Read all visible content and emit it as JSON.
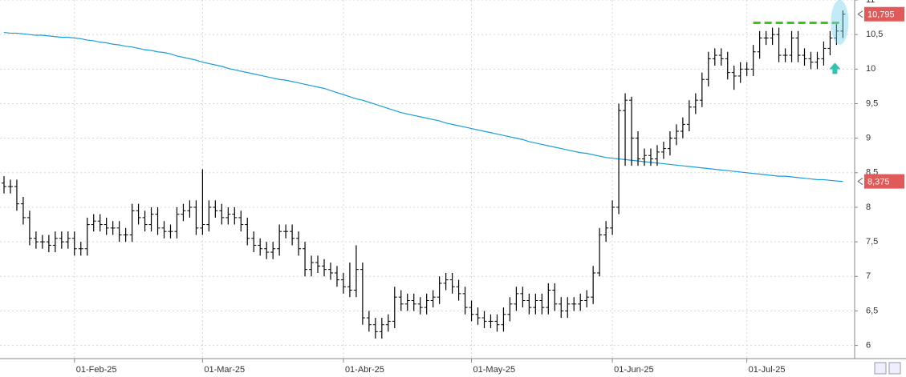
{
  "chart_data": {
    "type": "ohlc",
    "categories": [
      null,
      null,
      null,
      null,
      null,
      null,
      null,
      null,
      null,
      null,
      null,
      "01-Feb-25",
      null,
      null,
      null,
      null,
      null,
      null,
      null,
      null,
      null,
      null,
      null,
      null,
      null,
      null,
      null,
      null,
      null,
      null,
      null,
      "01-Mar-25",
      null,
      null,
      null,
      null,
      null,
      null,
      null,
      null,
      null,
      null,
      null,
      null,
      null,
      null,
      null,
      null,
      null,
      null,
      null,
      null,
      null,
      "01-Abr-25",
      null,
      null,
      null,
      null,
      null,
      null,
      null,
      null,
      null,
      null,
      null,
      null,
      null,
      null,
      null,
      null,
      null,
      null,
      null,
      "01-May-25",
      null,
      null,
      null,
      null,
      null,
      null,
      null,
      null,
      null,
      null,
      null,
      null,
      null,
      null,
      null,
      null,
      null,
      null,
      null,
      null,
      null,
      "01-Jun-25",
      null,
      null,
      null,
      null,
      null,
      null,
      null,
      null,
      null,
      null,
      null,
      null,
      null,
      null,
      null,
      null,
      null,
      null,
      null,
      null,
      "01-Jul-25",
      null,
      null,
      null,
      null,
      null,
      null,
      null,
      null,
      null,
      null,
      null,
      null,
      null,
      null,
      null
    ],
    "open": [
      8.35,
      8.3,
      8.3,
      8.05,
      7.85,
      7.55,
      7.5,
      7.5,
      7.45,
      7.55,
      7.5,
      7.55,
      7.4,
      7.4,
      7.75,
      7.8,
      7.75,
      7.7,
      7.7,
      7.6,
      7.6,
      7.95,
      7.85,
      7.75,
      7.9,
      7.7,
      7.65,
      7.65,
      7.9,
      7.95,
      8.0,
      7.7,
      7.75,
      8.0,
      7.95,
      7.85,
      7.9,
      7.85,
      7.75,
      7.55,
      7.45,
      7.4,
      7.35,
      7.4,
      7.65,
      7.65,
      7.55,
      7.4,
      7.1,
      7.2,
      7.15,
      7.1,
      7.05,
      6.95,
      6.85,
      6.8,
      7.1,
      6.4,
      6.3,
      6.2,
      6.3,
      6.35,
      6.7,
      6.6,
      6.65,
      6.6,
      6.55,
      6.65,
      6.7,
      6.9,
      6.95,
      6.85,
      6.75,
      6.55,
      6.45,
      6.4,
      6.35,
      6.35,
      6.3,
      6.45,
      6.6,
      6.75,
      6.65,
      6.55,
      6.65,
      6.55,
      6.8,
      6.6,
      6.5,
      6.6,
      6.6,
      6.65,
      6.7,
      7.05,
      7.6,
      7.7,
      8.0,
      9.4,
      9.55,
      9.0,
      8.7,
      8.75,
      8.7,
      8.8,
      8.85,
      9.0,
      9.1,
      9.2,
      9.45,
      9.55,
      9.85,
      10.15,
      10.2,
      10.15,
      9.95,
      9.9,
      10.0,
      10.0,
      10.25,
      10.45,
      10.45,
      10.5,
      10.2,
      10.2,
      10.45,
      10.2,
      10.15,
      10.1,
      10.15,
      10.3,
      10.45,
      10.55
    ],
    "high": [
      8.45,
      8.4,
      8.4,
      8.15,
      7.95,
      7.65,
      7.6,
      7.6,
      7.65,
      7.65,
      7.65,
      7.65,
      7.5,
      7.85,
      7.9,
      7.9,
      7.85,
      7.8,
      7.8,
      7.7,
      8.05,
      8.05,
      7.95,
      8.0,
      8.0,
      7.8,
      7.75,
      8.0,
      8.05,
      8.1,
      8.1,
      8.55,
      8.1,
      8.1,
      8.05,
      8.0,
      8.0,
      7.95,
      7.85,
      7.65,
      7.55,
      7.5,
      7.5,
      7.75,
      7.75,
      7.75,
      7.65,
      7.5,
      7.3,
      7.3,
      7.25,
      7.2,
      7.15,
      7.05,
      7.2,
      7.45,
      7.2,
      6.5,
      6.4,
      6.4,
      6.45,
      6.85,
      6.8,
      6.75,
      6.75,
      6.7,
      6.75,
      6.8,
      7.0,
      7.05,
      7.05,
      6.95,
      6.85,
      6.65,
      6.55,
      6.5,
      6.45,
      6.45,
      6.55,
      6.7,
      6.85,
      6.85,
      6.75,
      6.75,
      6.75,
      6.9,
      6.9,
      6.7,
      6.7,
      6.7,
      6.75,
      6.8,
      7.15,
      7.7,
      7.8,
      8.1,
      9.5,
      9.65,
      9.6,
      9.1,
      8.85,
      8.85,
      8.9,
      8.95,
      9.1,
      9.2,
      9.3,
      9.55,
      9.65,
      9.95,
      10.25,
      10.3,
      10.3,
      10.25,
      10.05,
      10.1,
      10.1,
      10.35,
      10.55,
      10.55,
      10.6,
      10.6,
      10.3,
      10.55,
      10.55,
      10.3,
      10.25,
      10.25,
      10.4,
      10.55,
      10.65,
      10.85
    ],
    "low": [
      8.2,
      8.2,
      7.95,
      7.75,
      7.45,
      7.4,
      7.4,
      7.35,
      7.35,
      7.4,
      7.4,
      7.3,
      7.3,
      7.3,
      7.65,
      7.65,
      7.6,
      7.6,
      7.5,
      7.5,
      7.5,
      7.75,
      7.65,
      7.65,
      7.6,
      7.55,
      7.55,
      7.55,
      7.8,
      7.85,
      7.6,
      7.6,
      7.65,
      7.85,
      7.75,
      7.75,
      7.75,
      7.65,
      7.45,
      7.35,
      7.3,
      7.25,
      7.25,
      7.3,
      7.55,
      7.45,
      7.3,
      7.0,
      7.0,
      7.05,
      7.0,
      6.95,
      6.85,
      6.75,
      6.7,
      6.7,
      6.3,
      6.2,
      6.1,
      6.1,
      6.2,
      6.25,
      6.5,
      6.5,
      6.5,
      6.45,
      6.45,
      6.55,
      6.6,
      6.8,
      6.75,
      6.65,
      6.45,
      6.35,
      6.3,
      6.25,
      6.25,
      6.2,
      6.2,
      6.35,
      6.5,
      6.55,
      6.45,
      6.45,
      6.45,
      6.45,
      6.5,
      6.4,
      6.4,
      6.5,
      6.5,
      6.55,
      6.6,
      7.0,
      7.5,
      7.6,
      7.9,
      8.6,
      8.6,
      8.6,
      8.6,
      8.6,
      8.6,
      8.7,
      8.75,
      8.9,
      9.0,
      9.1,
      9.35,
      9.45,
      9.75,
      10.05,
      10.05,
      9.85,
      9.7,
      9.8,
      9.9,
      9.9,
      10.15,
      10.35,
      10.35,
      10.1,
      10.1,
      10.1,
      10.1,
      10.05,
      10.0,
      10.0,
      10.05,
      10.2,
      10.35,
      10.45
    ],
    "close": [
      8.3,
      8.3,
      8.05,
      7.85,
      7.55,
      7.5,
      7.5,
      7.45,
      7.55,
      7.5,
      7.55,
      7.4,
      7.4,
      7.75,
      7.8,
      7.75,
      7.7,
      7.7,
      7.6,
      7.6,
      7.95,
      7.85,
      7.75,
      7.9,
      7.7,
      7.65,
      7.65,
      7.9,
      7.95,
      8.0,
      7.7,
      7.75,
      8.0,
      7.95,
      7.85,
      7.9,
      7.85,
      7.75,
      7.55,
      7.45,
      7.4,
      7.35,
      7.4,
      7.65,
      7.65,
      7.55,
      7.4,
      7.1,
      7.2,
      7.15,
      7.1,
      7.05,
      6.95,
      6.85,
      6.8,
      7.1,
      6.4,
      6.3,
      6.2,
      6.3,
      6.35,
      6.7,
      6.6,
      6.65,
      6.6,
      6.55,
      6.65,
      6.7,
      6.9,
      6.95,
      6.85,
      6.75,
      6.55,
      6.45,
      6.4,
      6.35,
      6.35,
      6.3,
      6.45,
      6.6,
      6.75,
      6.65,
      6.55,
      6.65,
      6.55,
      6.8,
      6.6,
      6.5,
      6.6,
      6.6,
      6.65,
      6.7,
      7.05,
      7.6,
      7.7,
      8.0,
      9.4,
      9.55,
      9.0,
      8.7,
      8.75,
      8.7,
      8.8,
      8.85,
      9.0,
      9.1,
      9.2,
      9.45,
      9.55,
      9.85,
      10.15,
      10.2,
      10.15,
      9.95,
      9.9,
      10.0,
      10.0,
      10.25,
      10.45,
      10.45,
      10.5,
      10.2,
      10.2,
      10.45,
      10.2,
      10.15,
      10.1,
      10.15,
      10.3,
      10.45,
      10.55,
      10.795
    ],
    "color": "#000000",
    "last_label": "10,795",
    "tag_color": "#e05a5a",
    "overlay": {
      "type": "line",
      "color": "#1a9ed8",
      "last_label": "8,375",
      "values": [
        10.53,
        10.52,
        10.52,
        10.51,
        10.5,
        10.49,
        10.49,
        10.48,
        10.47,
        10.46,
        10.46,
        10.45,
        10.44,
        10.42,
        10.41,
        10.39,
        10.38,
        10.36,
        10.35,
        10.33,
        10.32,
        10.3,
        10.28,
        10.27,
        10.25,
        10.24,
        10.22,
        10.19,
        10.17,
        10.15,
        10.13,
        10.1,
        10.08,
        10.06,
        10.04,
        10.01,
        9.99,
        9.97,
        9.95,
        9.93,
        9.91,
        9.89,
        9.87,
        9.85,
        9.84,
        9.82,
        9.8,
        9.78,
        9.76,
        9.74,
        9.72,
        9.69,
        9.66,
        9.63,
        9.6,
        9.57,
        9.55,
        9.52,
        9.49,
        9.46,
        9.43,
        9.4,
        9.37,
        9.35,
        9.33,
        9.31,
        9.29,
        9.27,
        9.25,
        9.22,
        9.2,
        9.18,
        9.16,
        9.14,
        9.12,
        9.1,
        9.08,
        9.06,
        9.04,
        9.02,
        9.0,
        8.98,
        8.95,
        8.93,
        8.91,
        8.89,
        8.87,
        8.85,
        8.83,
        8.81,
        8.79,
        8.78,
        8.76,
        8.74,
        8.72,
        8.71,
        8.7,
        8.69,
        8.68,
        8.67,
        8.66,
        8.65,
        8.64,
        8.63,
        8.62,
        8.61,
        8.6,
        8.59,
        8.58,
        8.57,
        8.56,
        8.55,
        8.54,
        8.53,
        8.52,
        8.51,
        8.5,
        8.49,
        8.48,
        8.47,
        8.46,
        8.45,
        8.45,
        8.44,
        8.43,
        8.42,
        8.41,
        8.4,
        8.4,
        8.39,
        8.38,
        8.375
      ]
    },
    "hline": {
      "value": 10.67,
      "color": "#33cc11"
    },
    "ylim": [
      5.81,
      11.0
    ],
    "yticks": [
      6,
      {
        "value": 6.5,
        "label": "6,5"
      },
      7,
      {
        "value": 7.5,
        "label": "7,5"
      },
      8,
      {
        "value": 8.5,
        "label": "8,5"
      },
      9,
      {
        "value": 9.5,
        "label": "9,5"
      },
      10,
      {
        "value": 10.5,
        "label": "10,5"
      },
      11
    ],
    "grid": true
  }
}
